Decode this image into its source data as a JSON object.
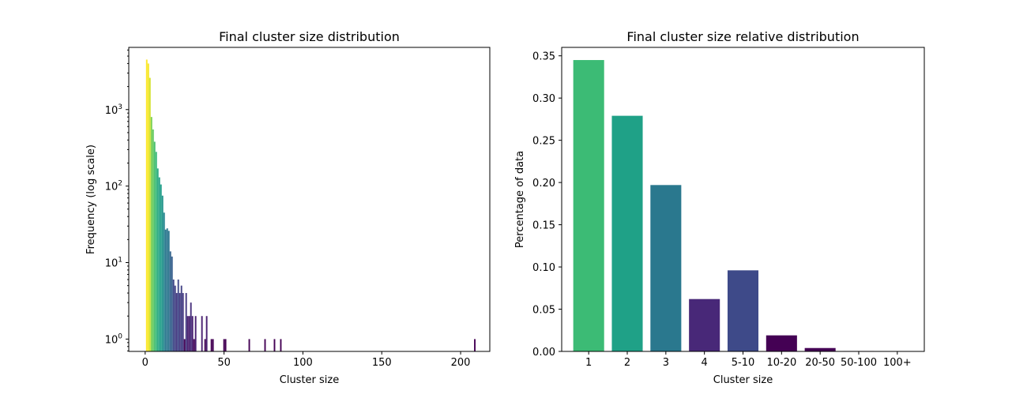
{
  "chart_data": [
    {
      "type": "bar",
      "title": "Final cluster size distribution",
      "xlabel": "Cluster size",
      "ylabel": "Frequency (log scale)",
      "yscale": "log",
      "xlim": [
        -10.4,
        218.5
      ],
      "ylim": [
        0.69,
        6500
      ],
      "x_ticks": [
        0,
        50,
        100,
        150,
        200
      ],
      "y_ticks": [
        {
          "base": "10",
          "exp": "0",
          "value": 1
        },
        {
          "base": "10",
          "exp": "1",
          "value": 10
        },
        {
          "base": "10",
          "exp": "2",
          "value": 100
        },
        {
          "base": "10",
          "exp": "3",
          "value": 1000
        }
      ],
      "grid": false,
      "colormap": "viridis",
      "bars": [
        {
          "x": 1,
          "y": 4500
        },
        {
          "x": 2,
          "y": 4000
        },
        {
          "x": 3,
          "y": 2600
        },
        {
          "x": 4,
          "y": 800
        },
        {
          "x": 5,
          "y": 550
        },
        {
          "x": 6,
          "y": 380
        },
        {
          "x": 7,
          "y": 280
        },
        {
          "x": 8,
          "y": 170
        },
        {
          "x": 9,
          "y": 130
        },
        {
          "x": 10,
          "y": 105
        },
        {
          "x": 11,
          "y": 75
        },
        {
          "x": 12,
          "y": 45
        },
        {
          "x": 13,
          "y": 27
        },
        {
          "x": 14,
          "y": 28
        },
        {
          "x": 15,
          "y": 26
        },
        {
          "x": 16,
          "y": 14
        },
        {
          "x": 17,
          "y": 12
        },
        {
          "x": 18,
          "y": 6
        },
        {
          "x": 19,
          "y": 5
        },
        {
          "x": 20,
          "y": 4
        },
        {
          "x": 21,
          "y": 6
        },
        {
          "x": 22,
          "y": 4
        },
        {
          "x": 23,
          "y": 5
        },
        {
          "x": 24,
          "y": 4
        },
        {
          "x": 25,
          "y": 1
        },
        {
          "x": 26,
          "y": 4
        },
        {
          "x": 27,
          "y": 2
        },
        {
          "x": 28,
          "y": 2
        },
        {
          "x": 29,
          "y": 3
        },
        {
          "x": 30,
          "y": 2
        },
        {
          "x": 31,
          "y": 1
        },
        {
          "x": 32,
          "y": 2
        },
        {
          "x": 36,
          "y": 2
        },
        {
          "x": 38,
          "y": 1
        },
        {
          "x": 39,
          "y": 2
        },
        {
          "x": 42,
          "y": 1
        },
        {
          "x": 43,
          "y": 1
        },
        {
          "x": 50,
          "y": 1
        },
        {
          "x": 51,
          "y": 1
        },
        {
          "x": 66,
          "y": 1
        },
        {
          "x": 76,
          "y": 1
        },
        {
          "x": 82,
          "y": 1
        },
        {
          "x": 86,
          "y": 1
        },
        {
          "x": 209,
          "y": 1
        }
      ]
    },
    {
      "type": "bar",
      "title": "Final cluster size relative distribution",
      "xlabel": "Cluster size",
      "ylabel": "Percentage of data",
      "ylim": [
        0,
        0.36
      ],
      "y_ticks": [
        "0.00",
        "0.05",
        "0.10",
        "0.15",
        "0.20",
        "0.25",
        "0.30",
        "0.35"
      ],
      "grid": false,
      "categories": [
        "1",
        "2",
        "3",
        "4",
        "5-10",
        "10-20",
        "20-50",
        "50-100",
        "100+"
      ],
      "values": [
        0.345,
        0.279,
        0.197,
        0.062,
        0.096,
        0.019,
        0.004,
        0.0005,
        0.0003
      ],
      "colors": [
        "#3cbb75",
        "#1fa187",
        "#2a788e",
        "#482878",
        "#3e4a89",
        "#440154",
        "#440154",
        "#440154",
        "#440154"
      ]
    }
  ]
}
